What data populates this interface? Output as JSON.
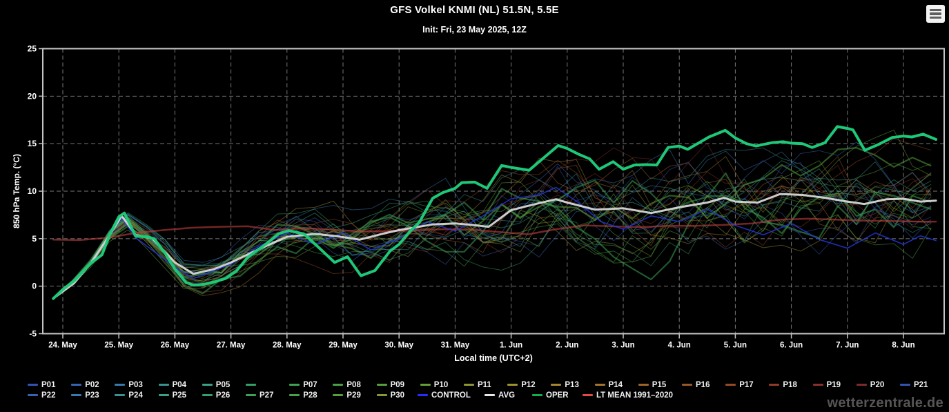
{
  "header": {
    "title": "GFS Volkel KNMI (NL) 51.5N, 5.5E",
    "subtitle": "Init: Fri, 23 May 2025, 12Z",
    "menu_icon": "hamburger-menu-icon"
  },
  "watermark": "wetterzentrale.de",
  "chart_data": {
    "type": "line",
    "title": "GFS Volkel KNMI (NL) 51.5N, 5.5E",
    "xlabel": "Local time (UTC+2)",
    "ylabel": "850 hPa Temp. (°C)",
    "ylim": [
      -5,
      25
    ],
    "yticks": [
      25,
      20,
      15,
      10,
      5,
      0,
      -5
    ],
    "grid": "dashed",
    "background": "#000000",
    "axis_color": "#c4c4c4",
    "grid_color": "#8d8d8d",
    "x_categories": [
      "24. May",
      "25. May",
      "26. May",
      "27. May",
      "28. May",
      "29. May",
      "30. May",
      "31. May",
      "1. Jun",
      "2. Jun",
      "3. Jun",
      "4. Jun",
      "5. Jun",
      "6. Jun",
      "7. Jun",
      "8. Jun"
    ],
    "x_unit": "days from 24 May 00:00 local",
    "series": [
      {
        "name": "OPER",
        "color": "#1ec878",
        "width": 4,
        "opacity": 1,
        "points": [
          [
            -0.17,
            -1.3
          ],
          [
            0,
            -0.35
          ],
          [
            0.21,
            0.6
          ],
          [
            0.5,
            2.4
          ],
          [
            0.7,
            3.3
          ],
          [
            0.85,
            5.6
          ],
          [
            1.0,
            7.3
          ],
          [
            1.1,
            7.7
          ],
          [
            1.3,
            5.25
          ],
          [
            1.5,
            5.2
          ],
          [
            1.63,
            5.0
          ],
          [
            1.82,
            3.5
          ],
          [
            2.0,
            1.8
          ],
          [
            2.2,
            0.4
          ],
          [
            2.33,
            0.1
          ],
          [
            2.52,
            0.2
          ],
          [
            2.7,
            0.45
          ],
          [
            2.9,
            0.8
          ],
          [
            3.1,
            1.6
          ],
          [
            3.3,
            3.05
          ],
          [
            3.64,
            4.5
          ],
          [
            3.85,
            5.5
          ],
          [
            4.03,
            5.85
          ],
          [
            4.3,
            5.5
          ],
          [
            4.58,
            4.0
          ],
          [
            4.85,
            2.5
          ],
          [
            5.08,
            3.1
          ],
          [
            5.32,
            1.1
          ],
          [
            5.57,
            1.65
          ],
          [
            5.84,
            3.7
          ],
          [
            6.0,
            4.4
          ],
          [
            6.2,
            5.8
          ],
          [
            6.36,
            6.7
          ],
          [
            6.6,
            9.25
          ],
          [
            6.78,
            9.85
          ],
          [
            7.0,
            10.3
          ],
          [
            7.12,
            10.9
          ],
          [
            7.35,
            10.95
          ],
          [
            7.57,
            10.3
          ],
          [
            7.83,
            12.7
          ],
          [
            8.0,
            12.5
          ],
          [
            8.32,
            12.2
          ],
          [
            8.6,
            13.6
          ],
          [
            8.84,
            14.8
          ],
          [
            9.0,
            14.5
          ],
          [
            9.2,
            13.9
          ],
          [
            9.4,
            13.4
          ],
          [
            9.57,
            12.3
          ],
          [
            9.82,
            13.1
          ],
          [
            10.0,
            12.3
          ],
          [
            10.2,
            12.75
          ],
          [
            10.4,
            12.8
          ],
          [
            10.6,
            12.75
          ],
          [
            10.8,
            14.6
          ],
          [
            11.0,
            14.75
          ],
          [
            11.15,
            14.4
          ],
          [
            11.53,
            15.7
          ],
          [
            11.82,
            16.4
          ],
          [
            12.0,
            15.6
          ],
          [
            12.2,
            15.0
          ],
          [
            12.37,
            14.75
          ],
          [
            12.65,
            15.1
          ],
          [
            12.85,
            15.2
          ],
          [
            13.0,
            15.05
          ],
          [
            13.2,
            15.0
          ],
          [
            13.37,
            14.6
          ],
          [
            13.6,
            15.1
          ],
          [
            13.82,
            16.8
          ],
          [
            14.0,
            16.6
          ],
          [
            14.1,
            16.45
          ],
          [
            14.31,
            14.3
          ],
          [
            14.55,
            14.9
          ],
          [
            14.8,
            15.65
          ],
          [
            15.0,
            15.8
          ],
          [
            15.15,
            15.7
          ],
          [
            15.35,
            16.0
          ],
          [
            15.58,
            15.45
          ]
        ]
      },
      {
        "name": "AVG",
        "color": "#d6d6d6",
        "width": 3,
        "opacity": 0.95,
        "points": [
          [
            -0.17,
            -1.3
          ],
          [
            0.2,
            0.3
          ],
          [
            0.5,
            2.4
          ],
          [
            0.85,
            5.5
          ],
          [
            1.05,
            7.4
          ],
          [
            1.3,
            5.4
          ],
          [
            1.6,
            5.0
          ],
          [
            2.0,
            2.5
          ],
          [
            2.33,
            1.3
          ],
          [
            2.7,
            1.8
          ],
          [
            3.0,
            2.5
          ],
          [
            3.5,
            3.9
          ],
          [
            4.0,
            5.2
          ],
          [
            4.5,
            5.5
          ],
          [
            4.9,
            5.25
          ],
          [
            5.3,
            4.9
          ],
          [
            5.7,
            5.5
          ],
          [
            6.0,
            5.9
          ],
          [
            6.3,
            6.2
          ],
          [
            6.6,
            6.5
          ],
          [
            7.0,
            6.6
          ],
          [
            7.3,
            6.45
          ],
          [
            7.6,
            6.25
          ],
          [
            8.0,
            8.0
          ],
          [
            8.4,
            8.6
          ],
          [
            8.8,
            9.15
          ],
          [
            9.0,
            8.8
          ],
          [
            9.5,
            8.05
          ],
          [
            10.0,
            8.2
          ],
          [
            10.5,
            7.7
          ],
          [
            11.0,
            8.3
          ],
          [
            11.5,
            8.8
          ],
          [
            11.8,
            9.3
          ],
          [
            12.0,
            8.9
          ],
          [
            12.4,
            8.8
          ],
          [
            12.8,
            9.7
          ],
          [
            13.2,
            9.6
          ],
          [
            13.6,
            9.3
          ],
          [
            14.0,
            8.9
          ],
          [
            14.3,
            8.65
          ],
          [
            14.7,
            9.15
          ],
          [
            15.0,
            9.2
          ],
          [
            15.3,
            8.9
          ],
          [
            15.58,
            9.0
          ]
        ]
      },
      {
        "name": "CONTROL",
        "color": "#2336d6",
        "width": 1.6,
        "opacity": 0.85,
        "points": [
          [
            -0.17,
            -1.3
          ],
          [
            0.5,
            2.3
          ],
          [
            1.05,
            7.2
          ],
          [
            1.3,
            5.1
          ],
          [
            2.0,
            2.0
          ],
          [
            2.33,
            0.8
          ],
          [
            3.0,
            2.3
          ],
          [
            3.5,
            4.2
          ],
          [
            4.0,
            5.6
          ],
          [
            4.5,
            4.4
          ],
          [
            5.0,
            5.6
          ],
          [
            5.5,
            3.8
          ],
          [
            6.0,
            5.0
          ],
          [
            6.5,
            6.8
          ],
          [
            7.0,
            5.8
          ],
          [
            7.5,
            7.4
          ],
          [
            8.0,
            9.2
          ],
          [
            8.5,
            9.6
          ],
          [
            8.8,
            10.4
          ],
          [
            9.2,
            8.8
          ],
          [
            9.6,
            6.8
          ],
          [
            10.0,
            6.0
          ],
          [
            10.5,
            7.4
          ],
          [
            11.0,
            6.8
          ],
          [
            11.5,
            8.1
          ],
          [
            12.0,
            6.4
          ],
          [
            12.5,
            5.4
          ],
          [
            13.0,
            6.6
          ],
          [
            13.5,
            4.9
          ],
          [
            14.0,
            4.0
          ],
          [
            14.5,
            5.6
          ],
          [
            15.0,
            4.4
          ],
          [
            15.3,
            5.3
          ],
          [
            15.58,
            4.8
          ]
        ]
      },
      {
        "name": "LT MEAN 1991–2020",
        "color": "#c24040",
        "width": 2.5,
        "opacity": 0.6,
        "points": [
          [
            -0.17,
            4.9
          ],
          [
            0.3,
            4.85
          ],
          [
            0.8,
            5.1
          ],
          [
            1.3,
            5.6
          ],
          [
            1.8,
            5.9
          ],
          [
            2.3,
            6.15
          ],
          [
            2.8,
            6.25
          ],
          [
            3.3,
            6.3
          ],
          [
            3.8,
            5.9
          ],
          [
            4.3,
            6.1
          ],
          [
            4.8,
            5.95
          ],
          [
            5.3,
            5.75
          ],
          [
            5.8,
            5.8
          ],
          [
            6.3,
            5.9
          ],
          [
            6.8,
            6.0
          ],
          [
            7.3,
            5.95
          ],
          [
            7.8,
            5.7
          ],
          [
            8.3,
            5.45
          ],
          [
            8.8,
            6.0
          ],
          [
            9.3,
            6.4
          ],
          [
            9.8,
            6.3
          ],
          [
            10.3,
            6.2
          ],
          [
            10.8,
            6.35
          ],
          [
            11.3,
            6.35
          ],
          [
            11.8,
            6.45
          ],
          [
            12.3,
            6.6
          ],
          [
            12.8,
            7.0
          ],
          [
            13.3,
            7.1
          ],
          [
            13.8,
            7.0
          ],
          [
            14.3,
            6.9
          ],
          [
            14.8,
            6.85
          ],
          [
            15.3,
            6.8
          ],
          [
            15.58,
            6.8
          ]
        ]
      }
    ],
    "ensemble": {
      "count": 30,
      "member_prefix": "P",
      "palette": [
        "#3353b0",
        "#3763b5",
        "#3a78b0",
        "#3a9293",
        "#3ba184",
        "#35a065",
        "#3da251",
        "#47a247",
        "#55a03d",
        "#639e36",
        "#8c9733",
        "#9e9230",
        "#a5872d",
        "#a2752b",
        "#9e6428",
        "#9a5728",
        "#964926",
        "#913c26",
        "#893126",
        "#7c2b2a"
      ],
      "opacity": 0.5,
      "start_t": -0.17,
      "end_t": 15.58,
      "step": 0.3333,
      "amp_base": 0.15,
      "amp_slope": 0.55,
      "amp_max": 5.2,
      "clamp": [
        -2.3,
        19.8
      ]
    }
  },
  "legend": {
    "row1": [
      {
        "label": "P01",
        "color": "#3353b0"
      },
      {
        "label": "P02",
        "color": "#3763b5"
      },
      {
        "label": "P03",
        "color": "#3a78b0"
      },
      {
        "label": "P04",
        "color": "#3a9293"
      },
      {
        "label": "P05",
        "color": "#3ba184"
      },
      {
        "label": "",
        "color": "#35a065"
      },
      {
        "label": "P07",
        "color": "#3da251"
      },
      {
        "label": "P08",
        "color": "#47a247"
      },
      {
        "label": "P09",
        "color": "#55a03d"
      },
      {
        "label": "P10",
        "color": "#639e36"
      },
      {
        "label": "P11",
        "color": "#8c9733"
      },
      {
        "label": "P12",
        "color": "#9e9230"
      },
      {
        "label": "P13",
        "color": "#a5872d"
      },
      {
        "label": "P14",
        "color": "#a2752b"
      },
      {
        "label": "P15",
        "color": "#9e6428"
      },
      {
        "label": "P16",
        "color": "#9a5728"
      },
      {
        "label": "P17",
        "color": "#964926"
      },
      {
        "label": "P18",
        "color": "#913c26"
      },
      {
        "label": "P19",
        "color": "#893126"
      },
      {
        "label": "P20",
        "color": "#7c2b2a"
      },
      {
        "label": "P21",
        "color": "#3353b0"
      }
    ],
    "row2": [
      {
        "label": "P22",
        "color": "#3763b5"
      },
      {
        "label": "P23",
        "color": "#3a78b0"
      },
      {
        "label": "P24",
        "color": "#3a9293"
      },
      {
        "label": "P25",
        "color": "#3ba184"
      },
      {
        "label": "P26",
        "color": "#35a065"
      },
      {
        "label": "P27",
        "color": "#3da251"
      },
      {
        "label": "P28",
        "color": "#47a247"
      },
      {
        "label": "P29",
        "color": "#55a03d"
      },
      {
        "label": "P30",
        "color": "#8c9733"
      },
      {
        "label": "CONTROL",
        "color": "#2a2aff"
      },
      {
        "label": "AVG",
        "color": "#e8e8e8"
      },
      {
        "label": "OPER",
        "color": "#10b050"
      },
      {
        "label": "LT MEAN 1991–2020",
        "color": "#e64848"
      }
    ]
  }
}
